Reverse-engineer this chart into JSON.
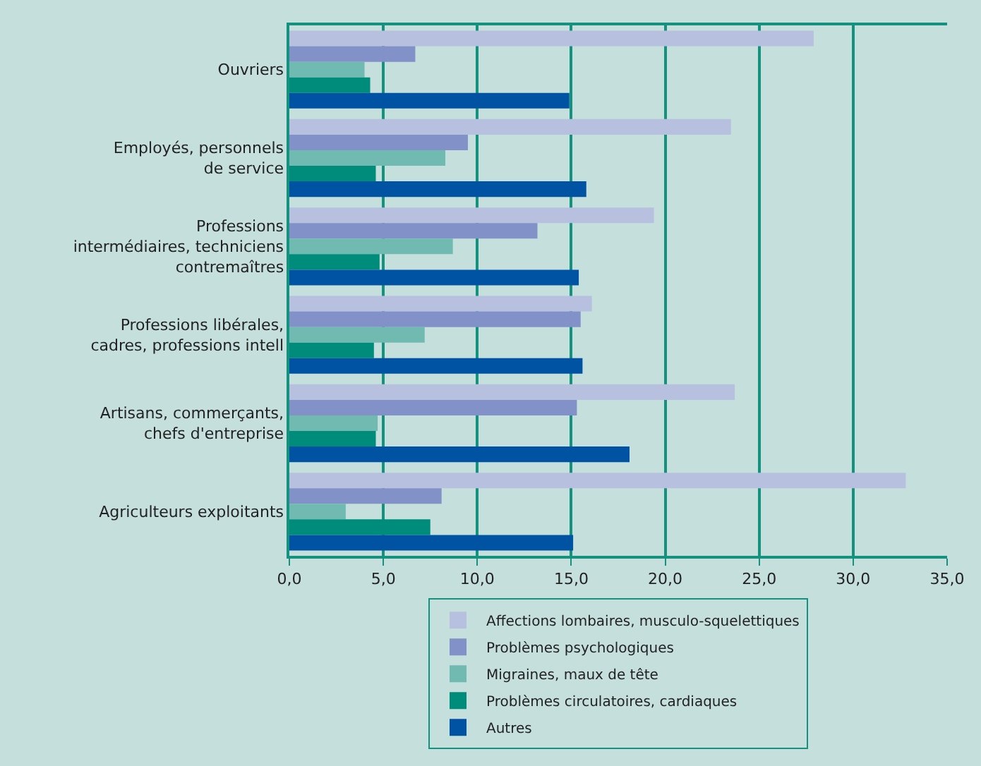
{
  "chart_data": {
    "type": "bar",
    "orientation": "horizontal",
    "categories": [
      "Ouvriers",
      "Employés, personnels\nde service",
      "Professions\nintermédiaires, techniciens\ncontremaîtres",
      "Professions libérales,\ncadres, professions intell",
      "Artisans, commerçants,\nchefs d'entreprise",
      "Agriculteurs exploitants"
    ],
    "series": [
      {
        "name": "Affections lombaires, musculo-squelettiques",
        "color": "#b8c0e0",
        "values": [
          27.9,
          23.5,
          19.4,
          16.1,
          23.7,
          32.8
        ]
      },
      {
        "name": "Problèmes psychologiques",
        "color": "#8292c8",
        "values": [
          6.7,
          9.5,
          13.2,
          15.5,
          15.3,
          8.1
        ]
      },
      {
        "name": "Migraines, maux de tête",
        "color": "#70bab2",
        "values": [
          4.0,
          8.3,
          8.7,
          7.2,
          4.7,
          3.0
        ]
      },
      {
        "name": "Problèmes circulatoires, cardiaques",
        "color": "#008c7a",
        "values": [
          4.3,
          4.6,
          4.8,
          4.5,
          4.6,
          7.5
        ]
      },
      {
        "name": "Autres",
        "color": "#0052a3",
        "values": [
          14.9,
          15.8,
          15.4,
          15.6,
          18.1,
          15.1
        ]
      }
    ],
    "xlim": [
      0,
      35
    ],
    "xticks": [
      {
        "value": 0,
        "label": "0,0"
      },
      {
        "value": 5,
        "label": "5,0"
      },
      {
        "value": 10,
        "label": "10,0"
      },
      {
        "value": 15,
        "label": "15,0"
      },
      {
        "value": 20,
        "label": "20,0"
      },
      {
        "value": 25,
        "label": "25,0"
      },
      {
        "value": 30,
        "label": "30,0"
      },
      {
        "value": 35,
        "label": "35,0"
      }
    ],
    "grid": "x",
    "legend": "bottom"
  }
}
